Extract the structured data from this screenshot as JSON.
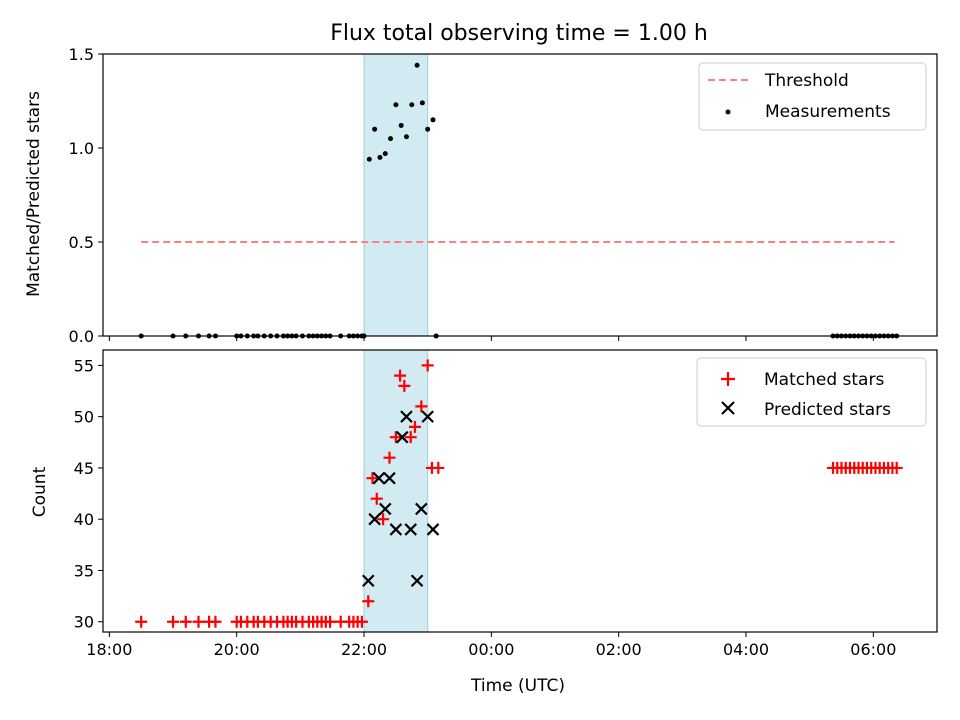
{
  "title": "Flux total observing time = 1.00 h",
  "colors": {
    "threshold": "#ff7f7f",
    "measurements": "#000000",
    "matched": "#ff0000",
    "predicted": "#000000",
    "span": "#add8e6"
  },
  "chart_data": [
    {
      "type": "scatter",
      "title": "Flux total observing time = 1.00 h",
      "xlabel": "",
      "ylabel": "Matched/Predicted stars",
      "xlim": [
        "18:00",
        "07:00 (+1 day)"
      ],
      "ylim": [
        0,
        1.5
      ],
      "yticks": [
        "0.0",
        "0.5",
        "1.0",
        "1.5"
      ],
      "legend_position": "top-right",
      "highlight_span": [
        "22:00",
        "23:00"
      ],
      "series": [
        {
          "name": "Threshold",
          "kind": "dashed-line",
          "x": [
            "18:30",
            "06:20"
          ],
          "y": [
            0.5,
            0.5
          ]
        },
        {
          "name": "Measurements",
          "kind": "dots",
          "x": [
            "18:30",
            "19:00",
            "19:12",
            "19:24",
            "19:34",
            "19:40",
            "20:00",
            "20:04",
            "20:10",
            "20:16",
            "20:20",
            "20:26",
            "20:32",
            "20:38",
            "20:44",
            "20:48",
            "20:52",
            "20:56",
            "21:02",
            "21:08",
            "21:12",
            "21:16",
            "21:20",
            "21:24",
            "21:28",
            "21:38",
            "21:46",
            "21:50",
            "21:54",
            "21:58",
            "22:00",
            "22:05",
            "22:10",
            "22:15",
            "22:20",
            "22:25",
            "22:30",
            "22:35",
            "22:40",
            "22:45",
            "22:50",
            "22:55",
            "23:00",
            "23:05",
            "23:08",
            "05:22",
            "05:26",
            "05:30",
            "05:34",
            "05:38",
            "05:42",
            "05:46",
            "05:50",
            "05:54",
            "05:58",
            "06:02",
            "06:06",
            "06:10",
            "06:14",
            "06:18",
            "06:22"
          ],
          "y": [
            0,
            0,
            0,
            0,
            0,
            0,
            0,
            0,
            0,
            0,
            0,
            0,
            0,
            0,
            0,
            0,
            0,
            0,
            0,
            0,
            0,
            0,
            0,
            0,
            0,
            0,
            0,
            0,
            0,
            0,
            0,
            0.94,
            1.1,
            0.95,
            0.97,
            1.05,
            1.23,
            1.12,
            1.06,
            1.23,
            1.44,
            1.24,
            1.1,
            1.15,
            0,
            0,
            0,
            0,
            0,
            0,
            0,
            0,
            0,
            0,
            0,
            0,
            0,
            0,
            0,
            0,
            0
          ]
        }
      ]
    },
    {
      "type": "scatter",
      "title": "",
      "xlabel": "Time (UTC)",
      "ylabel": "Count",
      "xlim": [
        "18:00",
        "07:00 (+1 day)"
      ],
      "xticks": [
        "18:00",
        "20:00",
        "22:00",
        "00:00",
        "02:00",
        "04:00",
        "06:00"
      ],
      "ylim": [
        29,
        56.5
      ],
      "yticks": [
        "30",
        "35",
        "40",
        "45",
        "50",
        "55"
      ],
      "legend_position": "top-right",
      "highlight_span": [
        "22:00",
        "23:00"
      ],
      "series": [
        {
          "name": "Matched stars",
          "marker": "+",
          "x": [
            "18:30",
            "19:00",
            "19:12",
            "19:24",
            "19:34",
            "19:40",
            "20:00",
            "20:04",
            "20:10",
            "20:16",
            "20:20",
            "20:26",
            "20:32",
            "20:38",
            "20:44",
            "20:48",
            "20:52",
            "20:56",
            "21:02",
            "21:08",
            "21:12",
            "21:16",
            "21:20",
            "21:24",
            "21:28",
            "21:38",
            "21:46",
            "21:50",
            "21:54",
            "21:58",
            "22:04",
            "22:08",
            "22:12",
            "22:18",
            "22:24",
            "22:30",
            "22:34",
            "22:38",
            "22:44",
            "22:48",
            "22:54",
            "23:00",
            "23:04",
            "23:10",
            "05:22",
            "05:26",
            "05:30",
            "05:34",
            "05:38",
            "05:42",
            "05:46",
            "05:50",
            "05:54",
            "05:58",
            "06:02",
            "06:06",
            "06:10",
            "06:14",
            "06:18",
            "06:22"
          ],
          "y": [
            30,
            30,
            30,
            30,
            30,
            30,
            30,
            30,
            30,
            30,
            30,
            30,
            30,
            30,
            30,
            30,
            30,
            30,
            30,
            30,
            30,
            30,
            30,
            30,
            30,
            30,
            30,
            30,
            30,
            30,
            32,
            44,
            42,
            40,
            46,
            48,
            54,
            53,
            48,
            49,
            51,
            55,
            45,
            45,
            45,
            45,
            45,
            45,
            45,
            45,
            45,
            45,
            45,
            45,
            45,
            45,
            45,
            45,
            45,
            45
          ]
        },
        {
          "name": "Predicted stars",
          "marker": "x",
          "x": [
            "22:04",
            "22:10",
            "22:14",
            "22:20",
            "22:24",
            "22:30",
            "22:36",
            "22:40",
            "22:44",
            "22:50",
            "22:54",
            "23:00",
            "23:05"
          ],
          "y": [
            34,
            40,
            44,
            41,
            44,
            39,
            48,
            50,
            39,
            34,
            41,
            50,
            39
          ]
        }
      ]
    }
  ]
}
